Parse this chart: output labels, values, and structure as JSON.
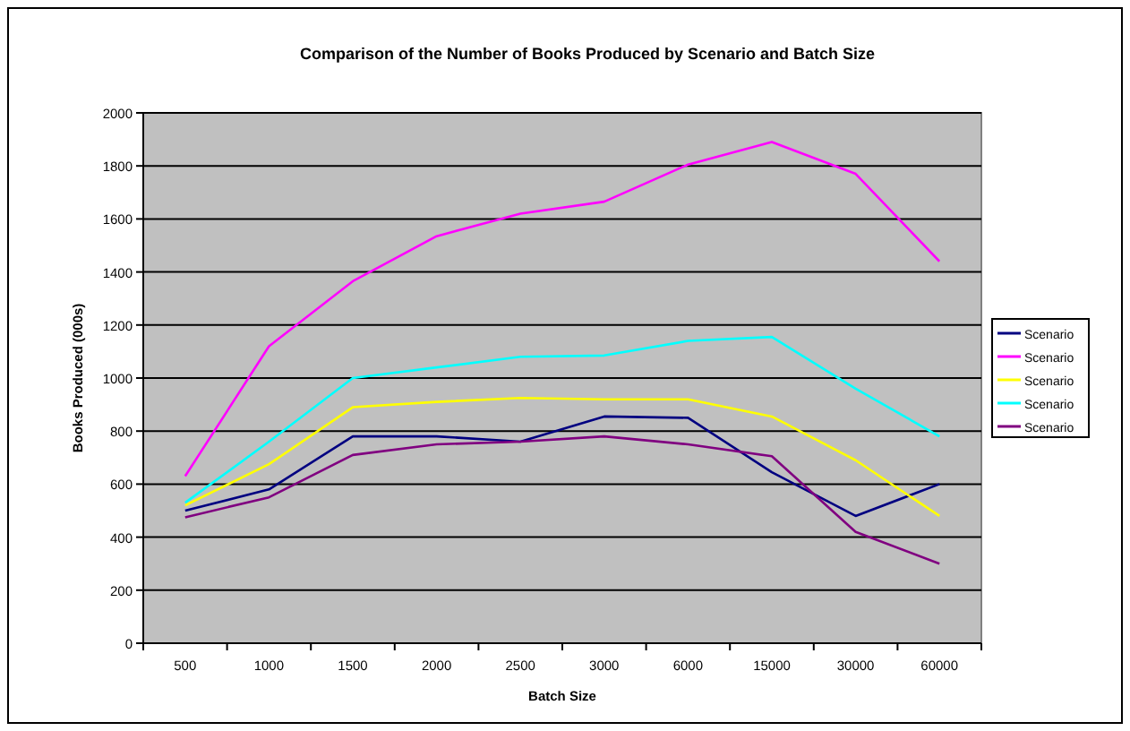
{
  "chart_data": {
    "type": "line",
    "title": "Comparison of the Number of Books Produced by Scenario and Batch Size",
    "xlabel": "Batch Size",
    "ylabel": "Books Produced (000s)",
    "categories": [
      "500",
      "1000",
      "1500",
      "2000",
      "2500",
      "3000",
      "6000",
      "15000",
      "30000",
      "60000"
    ],
    "series": [
      {
        "name": "Scenario",
        "color": "#000080",
        "values": [
          500,
          580,
          780,
          780,
          760,
          855,
          850,
          645,
          480,
          600
        ]
      },
      {
        "name": "Scenario",
        "color": "#ff00ff",
        "values": [
          630,
          1120,
          1365,
          1535,
          1620,
          1665,
          1805,
          1890,
          1770,
          1440
        ]
      },
      {
        "name": "Scenario",
        "color": "#ffff00",
        "values": [
          520,
          675,
          890,
          910,
          925,
          920,
          920,
          855,
          690,
          480
        ]
      },
      {
        "name": "Scenario",
        "color": "#00ffff",
        "values": [
          530,
          760,
          1000,
          1040,
          1080,
          1085,
          1140,
          1155,
          960,
          780
        ]
      },
      {
        "name": "Scenario",
        "color": "#800080",
        "values": [
          475,
          550,
          710,
          750,
          760,
          780,
          750,
          705,
          420,
          300
        ]
      }
    ],
    "ylim": [
      0,
      2000
    ],
    "yticks": [
      0,
      200,
      400,
      600,
      800,
      1000,
      1200,
      1400,
      1600,
      1800,
      2000
    ],
    "grid": "y",
    "legend": "right",
    "marker": "none",
    "line_style": "solid"
  }
}
